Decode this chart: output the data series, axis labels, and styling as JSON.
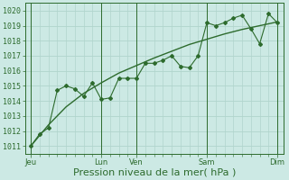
{
  "bg_color": "#cce9e4",
  "grid_color": "#b0d4cc",
  "line_color": "#2d6b2d",
  "ylim": [
    1010.5,
    1020.5
  ],
  "yticks": [
    1011,
    1012,
    1013,
    1014,
    1015,
    1016,
    1017,
    1018,
    1019,
    1020
  ],
  "xlabel": "Pression niveau de la mer( hPa )",
  "xlabel_fontsize": 8,
  "tick_fontsize": 6,
  "day_labels": [
    "Jeu",
    "Lun",
    "Ven",
    "Sam",
    "Dim"
  ],
  "day_positions": [
    0,
    96,
    144,
    240,
    336
  ],
  "vline_positions": [
    0,
    96,
    144,
    240,
    336
  ],
  "xlim": [
    -8,
    345
  ],
  "smooth_x": [
    0,
    24,
    48,
    72,
    96,
    120,
    144,
    168,
    192,
    216,
    240,
    264,
    288,
    312,
    336
  ],
  "smooth_y": [
    1011.0,
    1012.4,
    1013.6,
    1014.5,
    1015.2,
    1015.85,
    1016.35,
    1016.85,
    1017.3,
    1017.75,
    1018.1,
    1018.45,
    1018.75,
    1019.0,
    1019.25
  ],
  "data_x": [
    0,
    12,
    24,
    36,
    48,
    60,
    72,
    84,
    96,
    108,
    120,
    132,
    144,
    156,
    168,
    180,
    192,
    204,
    216,
    228,
    240,
    252,
    264,
    276,
    288,
    300,
    312,
    324,
    336
  ],
  "data_y": [
    1011.0,
    1011.8,
    1012.2,
    1014.7,
    1015.0,
    1014.8,
    1014.3,
    1015.2,
    1014.1,
    1014.2,
    1015.5,
    1015.5,
    1015.5,
    1016.5,
    1016.5,
    1016.7,
    1017.0,
    1016.3,
    1016.2,
    1017.0,
    1019.2,
    1019.0,
    1019.2,
    1019.5,
    1019.7,
    1018.8,
    1017.8,
    1019.8,
    1019.2
  ],
  "minor_grid_color": "#c8ddd8",
  "minor_step": 12
}
